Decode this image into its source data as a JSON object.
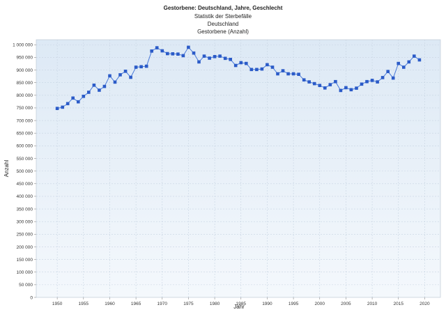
{
  "chart_data": {
    "type": "line",
    "title": "Gestorbene: Deutschland, Jahre, Geschlecht",
    "subtitles": [
      "Statistik der Sterbefälle",
      "Deutschland",
      "Gestorbene (Anzahl)"
    ],
    "xlabel": "Jahr",
    "ylabel": "Anzahl",
    "xlim": [
      1946,
      2023
    ],
    "ylim": [
      0,
      1020000
    ],
    "xticks": [
      1950,
      1955,
      1960,
      1965,
      1970,
      1975,
      1980,
      1985,
      1990,
      1995,
      2000,
      2005,
      2010,
      2015,
      2020
    ],
    "yticks": [
      0,
      50000,
      100000,
      150000,
      200000,
      250000,
      300000,
      350000,
      400000,
      450000,
      500000,
      550000,
      600000,
      650000,
      700000,
      750000,
      800000,
      850000,
      900000,
      950000,
      1000000
    ],
    "ytick_labels": [
      "0",
      "50 000",
      "100 000",
      "150 000",
      "200 000",
      "250 000",
      "300 000",
      "350 000",
      "400 000",
      "450 000",
      "500 000",
      "550 000",
      "600 000",
      "650 000",
      "700 000",
      "750 000",
      "800 000",
      "850 000",
      "900 000",
      "950 000",
      "1 000 000"
    ],
    "grid": true,
    "series": [
      {
        "x": [
          1950,
          1951,
          1952,
          1953,
          1954,
          1955,
          1956,
          1957,
          1958,
          1959,
          1960,
          1961,
          1962,
          1963,
          1964,
          1965,
          1966,
          1967,
          1968,
          1969,
          1970,
          1971,
          1972,
          1973,
          1974,
          1975,
          1976,
          1977,
          1978,
          1979,
          1980,
          1981,
          1982,
          1983,
          1984,
          1985,
          1986,
          1987,
          1988,
          1989,
          1990,
          1991,
          1992,
          1993,
          1994,
          1995,
          1996,
          1997,
          1998,
          1999,
          2000,
          2001,
          2002,
          2003,
          2004,
          2005,
          2006,
          2007,
          2008,
          2009,
          2010,
          2011,
          2012,
          2013,
          2014,
          2015,
          2016,
          2017,
          2018,
          2019
        ],
        "values": [
          748000,
          753000,
          767000,
          789000,
          774000,
          796000,
          812000,
          840000,
          820000,
          835000,
          877000,
          852000,
          881000,
          895000,
          871000,
          911000,
          913000,
          915000,
          975000,
          988000,
          976000,
          965000,
          964000,
          963000,
          957000,
          990000,
          967000,
          932000,
          955000,
          947000,
          953000,
          955000,
          946000,
          942000,
          918000,
          929000,
          926000,
          902000,
          902000,
          904000,
          921000,
          911000,
          885000,
          897000,
          885000,
          885000,
          883000,
          861000,
          853000,
          846000,
          839000,
          829000,
          842000,
          854000,
          819000,
          830000,
          822000,
          828000,
          844000,
          854000,
          859000,
          853000,
          870000,
          894000,
          868000,
          926000,
          911000,
          932000,
          955000,
          940000
        ]
      }
    ],
    "colors": {
      "line": "#4a7ad9",
      "marker": "#2b5bc8",
      "plot_top": "#dde9f5",
      "plot_bottom": "#f4f8fc",
      "grid": "#c7d4e2"
    }
  }
}
